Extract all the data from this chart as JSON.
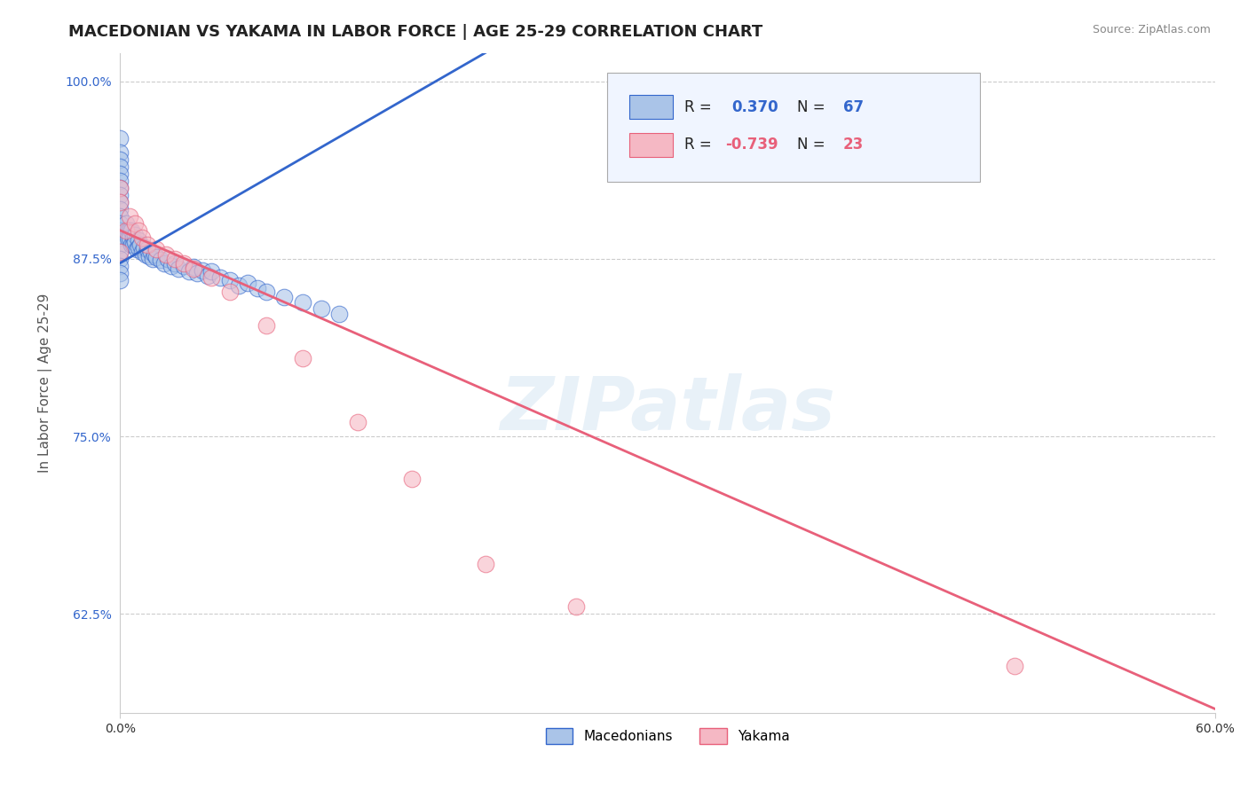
{
  "title": "MACEDONIAN VS YAKAMA IN LABOR FORCE | AGE 25-29 CORRELATION CHART",
  "source": "Source: ZipAtlas.com",
  "ylabel": "In Labor Force | Age 25-29",
  "xlim": [
    0.0,
    0.6
  ],
  "ylim": [
    0.555,
    1.02
  ],
  "xticks": [
    0.0,
    0.6
  ],
  "xticklabels": [
    "0.0%",
    "60.0%"
  ],
  "yticks": [
    0.625,
    0.75,
    0.875,
    1.0
  ],
  "yticklabels": [
    "62.5%",
    "75.0%",
    "87.5%",
    "100.0%"
  ],
  "grid_color": "#cccccc",
  "background_color": "#ffffff",
  "macedonian_color": "#aac4e8",
  "yakama_color": "#f5b8c4",
  "macedonian_line_color": "#3366cc",
  "yakama_line_color": "#e8607a",
  "macedonian_R": 0.37,
  "macedonian_N": 67,
  "yakama_R": -0.739,
  "yakama_N": 23,
  "mac_line_x0": 0.0,
  "mac_line_y0": 0.872,
  "mac_line_x1": 0.2,
  "mac_line_y1": 1.02,
  "yak_line_x0": 0.0,
  "yak_line_y0": 0.895,
  "yak_line_x1": 0.6,
  "yak_line_y1": 0.558,
  "macedonian_scatter_x": [
    0.0,
    0.0,
    0.0,
    0.0,
    0.0,
    0.0,
    0.0,
    0.0,
    0.0,
    0.0,
    0.0,
    0.0,
    0.0,
    0.0,
    0.0,
    0.0,
    0.0,
    0.0,
    0.0,
    0.0,
    0.003,
    0.004,
    0.004,
    0.005,
    0.005,
    0.006,
    0.006,
    0.007,
    0.007,
    0.008,
    0.008,
    0.009,
    0.01,
    0.01,
    0.011,
    0.012,
    0.013,
    0.014,
    0.015,
    0.016,
    0.017,
    0.018,
    0.019,
    0.02,
    0.022,
    0.024,
    0.026,
    0.028,
    0.03,
    0.032,
    0.035,
    0.038,
    0.04,
    0.042,
    0.045,
    0.048,
    0.05,
    0.055,
    0.06,
    0.065,
    0.07,
    0.075,
    0.08,
    0.09,
    0.1,
    0.11,
    0.12
  ],
  "macedonian_scatter_y": [
    0.96,
    0.95,
    0.945,
    0.94,
    0.935,
    0.93,
    0.925,
    0.92,
    0.915,
    0.91,
    0.905,
    0.9,
    0.895,
    0.89,
    0.885,
    0.88,
    0.875,
    0.87,
    0.865,
    0.86,
    0.9,
    0.895,
    0.89,
    0.895,
    0.89,
    0.885,
    0.895,
    0.89,
    0.885,
    0.892,
    0.887,
    0.882,
    0.888,
    0.883,
    0.885,
    0.88,
    0.883,
    0.878,
    0.882,
    0.877,
    0.88,
    0.875,
    0.878,
    0.876,
    0.874,
    0.872,
    0.875,
    0.87,
    0.872,
    0.868,
    0.87,
    0.866,
    0.869,
    0.865,
    0.867,
    0.863,
    0.866,
    0.862,
    0.86,
    0.856,
    0.858,
    0.854,
    0.852,
    0.848,
    0.844,
    0.84,
    0.836
  ],
  "yakama_scatter_x": [
    0.0,
    0.0,
    0.0,
    0.003,
    0.005,
    0.008,
    0.01,
    0.012,
    0.015,
    0.02,
    0.025,
    0.03,
    0.035,
    0.04,
    0.05,
    0.06,
    0.08,
    0.1,
    0.13,
    0.16,
    0.2,
    0.25,
    0.49
  ],
  "yakama_scatter_y": [
    0.925,
    0.915,
    0.88,
    0.895,
    0.905,
    0.9,
    0.895,
    0.89,
    0.885,
    0.882,
    0.878,
    0.875,
    0.872,
    0.868,
    0.862,
    0.852,
    0.828,
    0.805,
    0.76,
    0.72,
    0.66,
    0.63,
    0.588
  ],
  "watermark_text": "ZIPatlas",
  "legend_label1": "Macedonians",
  "legend_label2": "Yakama",
  "title_fontsize": 13,
  "axis_label_fontsize": 11,
  "tick_fontsize": 10
}
